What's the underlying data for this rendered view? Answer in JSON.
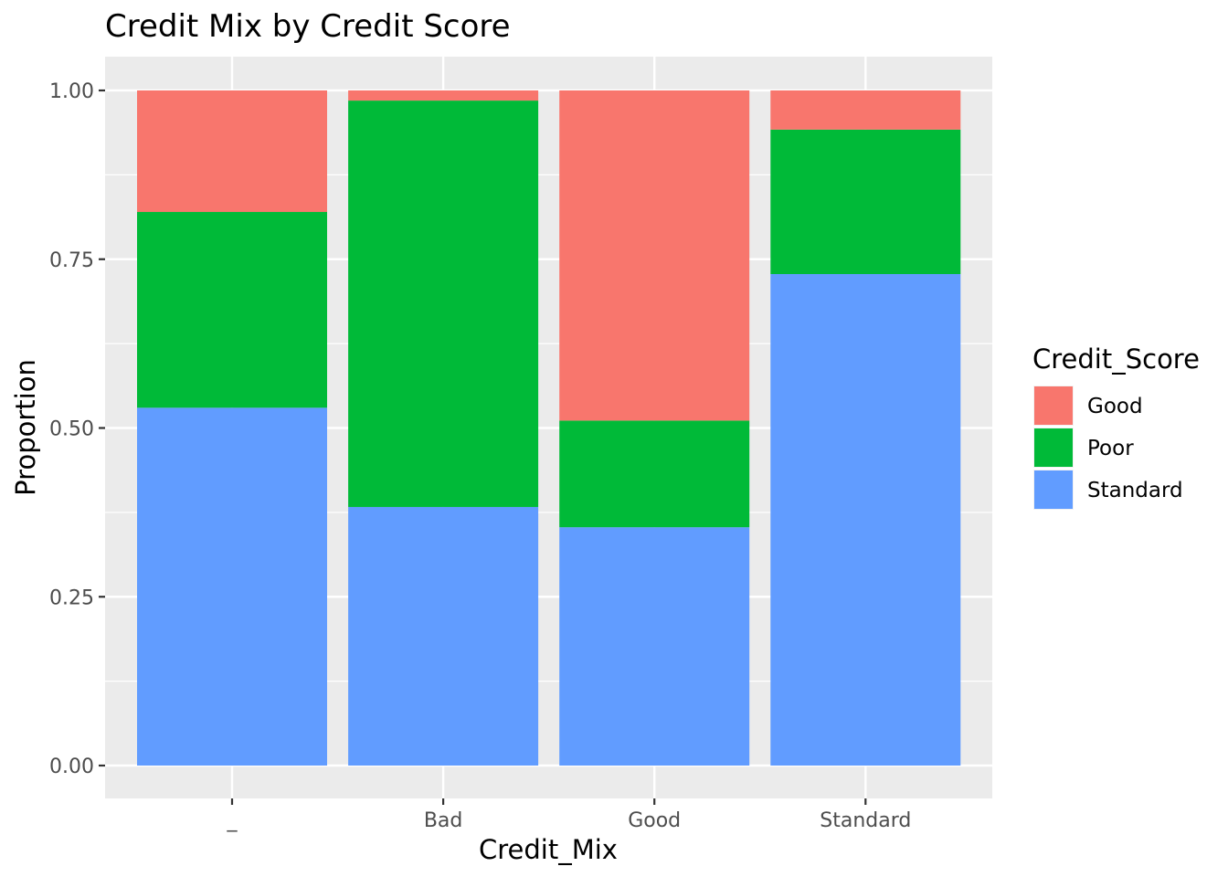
{
  "chart_data": {
    "type": "bar",
    "stacked": true,
    "title": "Credit Mix by Credit Score",
    "xlabel": "Credit_Mix",
    "ylabel": "Proportion",
    "categories": [
      "_",
      "Bad",
      "Good",
      "Standard"
    ],
    "series": [
      {
        "name": "Standard",
        "color": "#619CFF",
        "values": [
          0.53,
          0.383,
          0.353,
          0.728
        ]
      },
      {
        "name": "Poor",
        "color": "#00BA38",
        "values": [
          0.29,
          0.602,
          0.158,
          0.214
        ]
      },
      {
        "name": "Good",
        "color": "#F8766D",
        "values": [
          0.18,
          0.015,
          0.489,
          0.058
        ]
      }
    ],
    "ylim": [
      0,
      1
    ],
    "yticks": [
      "0.00",
      "0.25",
      "0.50",
      "0.75",
      "1.00"
    ],
    "ytick_values": [
      0,
      0.25,
      0.5,
      0.75,
      1.0
    ],
    "grid": true,
    "background": "#EBEBEB",
    "legend": {
      "title": "Credit_Score",
      "placement": "right",
      "items": [
        "Good",
        "Poor",
        "Standard"
      ]
    }
  }
}
